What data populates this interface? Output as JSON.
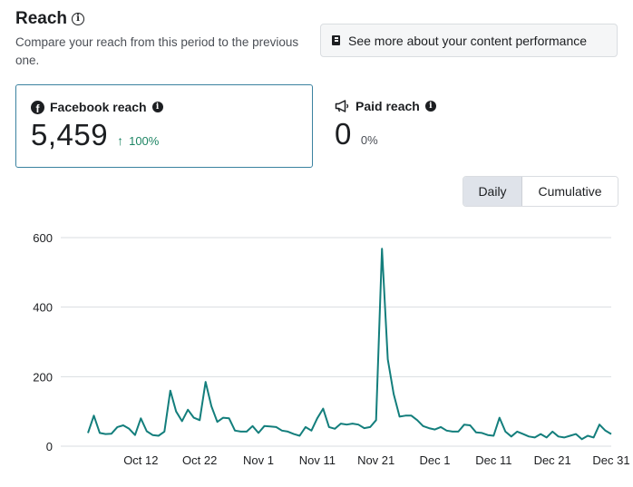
{
  "header": {
    "title": "Reach",
    "subtitle": "Compare your reach from this period to the previous one.",
    "info_icon": "info-circle-icon"
  },
  "see_more": {
    "label": "See more about your content performance",
    "icon": "book-icon"
  },
  "metrics": {
    "facebook": {
      "label": "Facebook reach",
      "value": "5,459",
      "delta": "100%",
      "delta_arrow": "↑",
      "delta_color": "#1e8564",
      "icon": "facebook-icon",
      "selected": true
    },
    "paid": {
      "label": "Paid reach",
      "value": "0",
      "delta": "0%",
      "icon": "megaphone-icon"
    }
  },
  "toggle": {
    "options": [
      "Daily",
      "Cumulative"
    ],
    "selected": "Daily"
  },
  "chart_data": {
    "type": "line",
    "title": "",
    "xlabel": "",
    "ylabel": "",
    "ylim": [
      0,
      600
    ],
    "yticks": [
      0,
      200,
      400,
      600
    ],
    "xtick_labels": [
      "Oct 12",
      "Oct 22",
      "Nov 1",
      "Nov 11",
      "Nov 21",
      "Dec 1",
      "Dec 11",
      "Dec 21",
      "Dec 31"
    ],
    "grid": true,
    "line_color": "#137e7c",
    "x_start": "Oct 3",
    "x_end": "Jan 2",
    "series": [
      {
        "values": [
          38,
          88,
          38,
          35,
          36,
          55,
          60,
          50,
          32,
          80,
          43,
          32,
          30,
          42,
          160,
          100,
          72,
          105,
          82,
          75,
          185,
          115,
          70,
          82,
          80,
          45,
          42,
          42,
          58,
          38,
          58,
          57,
          55,
          45,
          42,
          35,
          30,
          55,
          45,
          80,
          108,
          55,
          50,
          65,
          62,
          65,
          62,
          52,
          55,
          75,
          568,
          250,
          150,
          85,
          88,
          88,
          75,
          58,
          52,
          48,
          55,
          45,
          42,
          42,
          62,
          60,
          40,
          38,
          32,
          30,
          82,
          42,
          28,
          42,
          35,
          28,
          25,
          35,
          25,
          42,
          28,
          25,
          30,
          35,
          20,
          30,
          25,
          62,
          45,
          35
        ]
      }
    ]
  }
}
